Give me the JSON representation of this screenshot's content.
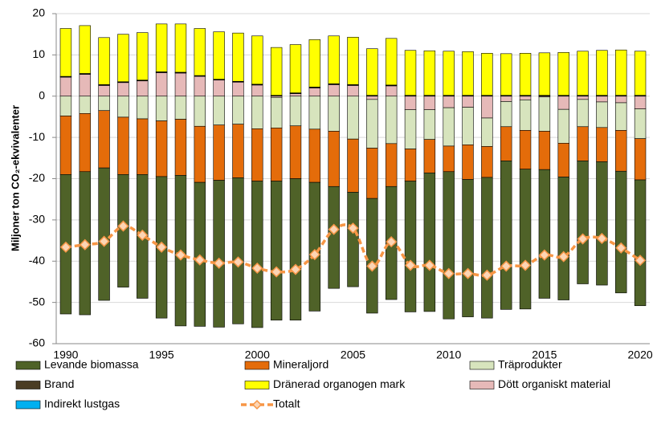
{
  "chart_data": {
    "type": "bar",
    "stacked": true,
    "y_label": "Miljoner ton CO₂-ekvivalenter",
    "categories": [
      "1990",
      null,
      null,
      null,
      null,
      "1995",
      null,
      null,
      null,
      null,
      "2000",
      null,
      null,
      null,
      null,
      "2005",
      null,
      null,
      null,
      null,
      "2010",
      null,
      null,
      null,
      null,
      "2015",
      null,
      null,
      null,
      null,
      "2020"
    ],
    "ylim": [
      -60,
      20
    ],
    "yticks": [
      -60,
      -50,
      -40,
      -30,
      -20,
      -10,
      0,
      10,
      20
    ],
    "grid": true,
    "series": [
      {
        "name": "Levande biomassa",
        "color": "#4f6228",
        "values": [
          -33.8,
          -34.7,
          -32.1,
          -27.3,
          -30,
          -34.3,
          -36.5,
          -34.9,
          -35.6,
          -35.4,
          -35.5,
          -33.7,
          -34.3,
          -31.2,
          -24.7,
          -22.9,
          -27.8,
          -27.4,
          -31.7,
          -33.6,
          -35.7,
          -33.3,
          -34.1,
          -36,
          -33.9,
          -31.2,
          -29.8,
          -29.8,
          -29.9,
          -29.5,
          -30.5
        ]
      },
      {
        "name": "Mineraljord",
        "color": "#e46c0a",
        "values": [
          -14.2,
          -14.1,
          -13.9,
          -13.9,
          -13.5,
          -13.5,
          -13.6,
          -13.6,
          -13.4,
          -13,
          -12.7,
          -12.9,
          -12.8,
          -12.9,
          -13.4,
          -12.9,
          -12.2,
          -10.4,
          -7.8,
          -8.1,
          -6.2,
          -8.4,
          -7.5,
          -8.3,
          -9.4,
          -9.3,
          -8.2,
          -8.3,
          -8.3,
          -9.9,
          -10
        ]
      },
      {
        "name": "Träprodukter",
        "color": "#d7e4bd",
        "values": [
          -4.8,
          -4.2,
          -3.5,
          -5.1,
          -5.5,
          -6,
          -5.6,
          -7.3,
          -7,
          -6.8,
          -7.9,
          -7.4,
          -7.2,
          -8,
          -8.5,
          -10.4,
          -11.8,
          -11.5,
          -9.5,
          -7.2,
          -9.3,
          -9.1,
          -6.9,
          -6.1,
          -7.4,
          -8.3,
          -8.2,
          -6.6,
          -6.2,
          -6.7,
          -7.2
        ]
      },
      {
        "name": "Brand",
        "color": "#4a3c24",
        "values": [
          0.1,
          0.1,
          0.1,
          0.1,
          0.1,
          0.1,
          0.1,
          0.1,
          0.1,
          0.1,
          0.1,
          0.1,
          0.1,
          0.1,
          0.1,
          0.1,
          0.1,
          0.1,
          0.1,
          0.1,
          0.1,
          0.1,
          0.1,
          0.1,
          0.1,
          0.1,
          0.1,
          0.1,
          0.1,
          0.1,
          0.1
        ]
      },
      {
        "name": "Dränerad organogen mark",
        "color": "#ffff00",
        "values": [
          11.6,
          11.6,
          11.4,
          11.5,
          11.5,
          11.6,
          11.7,
          11.4,
          11.5,
          11.7,
          11.7,
          11.6,
          11.7,
          11.5,
          11.6,
          11.5,
          11.3,
          11.3,
          10.9,
          10.8,
          10.7,
          10.6,
          10.2,
          10.1,
          10.2,
          10.3,
          10.4,
          10.7,
          10.9,
          11,
          10.7
        ]
      },
      {
        "name": "Dött organiskt material",
        "color": "#e6b9b8",
        "values": [
          4.6,
          5.3,
          2.6,
          3.3,
          3.7,
          5.7,
          5.6,
          4.8,
          3.9,
          3.4,
          2.7,
          -0.3,
          0.6,
          2,
          2.8,
          2.6,
          -0.8,
          2.5,
          -3.3,
          -3.3,
          -2.8,
          -2.7,
          -5.3,
          -1.3,
          -0.9,
          -0.2,
          -3.2,
          -0.8,
          -1.4,
          -1.6,
          -3.1
        ]
      },
      {
        "name": "Indirekt lustgas",
        "color": "#00b0f0",
        "values": [
          0.1,
          0.1,
          0.1,
          0.1,
          0.1,
          0.1,
          0.1,
          0.1,
          0.1,
          0.1,
          0.1,
          0.1,
          0.1,
          0.1,
          0.1,
          0.1,
          0.1,
          0.1,
          0.1,
          0.1,
          0.1,
          0.1,
          0.1,
          0.1,
          0.1,
          0.1,
          0.1,
          0.1,
          0.1,
          0.1,
          0.1
        ]
      },
      {
        "name": "Totalt",
        "type": "line",
        "color": "#f79646",
        "values": [
          -36.6,
          -36,
          -35.2,
          -31.5,
          -33.7,
          -36.6,
          -38.5,
          -39.7,
          -40.5,
          -40.2,
          -41.7,
          -42.6,
          -42,
          -38.4,
          -32.3,
          -32,
          -41.2,
          -35.3,
          -41,
          -41,
          -43,
          -43,
          -43.4,
          -41.2,
          -41,
          -38.5,
          -38.9,
          -34.6,
          -34.5,
          -36.8,
          -39.8
        ]
      }
    ]
  }
}
